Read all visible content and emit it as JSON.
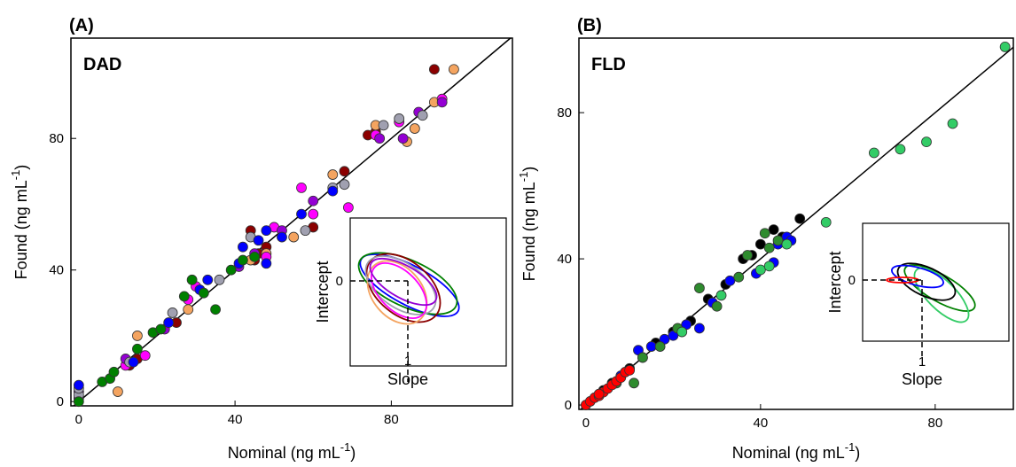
{
  "chart_data": [
    {
      "type": "scatter",
      "title": "(A)",
      "annotation": "DAD",
      "xlabel": {
        "text": "Nominal (ng mL",
        "sup": "-1",
        "end": ")"
      },
      "ylabel": {
        "text": "Found (ng mL",
        "sup": "-1",
        "end": ")"
      },
      "xlim": [
        -2,
        111
      ],
      "ylim": [
        -1.3,
        110.5
      ],
      "xticks": [
        0,
        40,
        80
      ],
      "yticks": [
        0,
        40,
        80
      ],
      "identity_line": true,
      "inset": {
        "xlabel": "Slope",
        "ylabel": "Intercept",
        "xticks": [
          1
        ],
        "yticks": [
          0
        ]
      },
      "series": [
        {
          "color": "#8b0000",
          "x": [
            13,
            15,
            25,
            45,
            46,
            48,
            60,
            68,
            74,
            76,
            91,
            44
          ],
          "values": [
            11,
            13,
            24,
            43,
            45,
            47,
            53,
            70,
            81,
            82,
            101,
            52
          ]
        },
        {
          "color": "#f4a460",
          "x": [
            10,
            15,
            28,
            44,
            48,
            55,
            65,
            76,
            84,
            86,
            91,
            96
          ],
          "values": [
            3,
            20,
            28,
            43,
            45,
            50,
            69,
            84,
            79,
            83,
            91,
            101
          ]
        },
        {
          "color": "#ff00ff",
          "x": [
            12,
            17,
            28,
            30,
            48,
            50,
            57,
            60,
            69,
            76,
            82,
            93
          ],
          "values": [
            11,
            14,
            31,
            35,
            44,
            53,
            65,
            57,
            59,
            81,
            85,
            92
          ]
        },
        {
          "color": "#9400d3",
          "x": [
            12,
            22,
            41,
            45,
            52,
            60,
            77,
            83,
            93,
            87,
            0,
            0
          ],
          "values": [
            13,
            22,
            41,
            45,
            52,
            61,
            80,
            80,
            91,
            88,
            3,
            1
          ]
        },
        {
          "color": "#a0a0b0",
          "x": [
            0,
            0,
            13,
            24,
            36,
            44,
            58,
            65,
            68,
            78,
            82,
            88
          ],
          "values": [
            2,
            4,
            12,
            27,
            37,
            50,
            52,
            65,
            66,
            84,
            86,
            87
          ]
        },
        {
          "color": "#0000ff",
          "x": [
            0,
            14,
            23,
            31,
            33,
            41,
            42,
            46,
            48,
            48,
            52,
            57,
            65
          ],
          "values": [
            5,
            12,
            24,
            34,
            37,
            42,
            47,
            49,
            52,
            42,
            50,
            57,
            64
          ]
        },
        {
          "color": "#008000",
          "x": [
            0,
            6,
            8,
            9,
            15,
            19,
            21,
            27,
            29,
            32,
            35,
            39,
            45,
            42
          ],
          "values": [
            0,
            6,
            7,
            9,
            16,
            21,
            22,
            32,
            37,
            33,
            28,
            40,
            44,
            43
          ]
        }
      ]
    },
    {
      "type": "scatter",
      "title": "(B)",
      "annotation": "FLD",
      "xlabel": {
        "text": "Nominal (ng mL",
        "sup": "-1",
        "end": ")"
      },
      "ylabel": {
        "text": "Found (ng mL",
        "sup": "-1",
        "end": ")"
      },
      "xlim": [
        -1.6,
        97.9
      ],
      "ylim": [
        -1.2,
        100.4
      ],
      "xticks": [
        0,
        40,
        80
      ],
      "yticks": [
        0,
        40,
        80
      ],
      "identity_line": true,
      "inset": {
        "xlabel": "Slope",
        "ylabel": "Intercept",
        "xticks": [
          1
        ],
        "yticks": [
          0
        ]
      },
      "series": [
        {
          "color": "#000000",
          "x": [
            4,
            6,
            10,
            13,
            16,
            20,
            24,
            28,
            32,
            36,
            38,
            40,
            43,
            45,
            49
          ],
          "values": [
            4,
            6,
            10,
            13,
            17,
            20,
            23,
            29,
            33,
            40,
            41,
            44,
            48,
            46,
            51
          ]
        },
        {
          "color": "#0000ff",
          "x": [
            8,
            12,
            15,
            18,
            20,
            23,
            26,
            29,
            33,
            39,
            43,
            44,
            46,
            47
          ],
          "values": [
            8,
            15,
            16,
            18,
            19,
            22,
            21,
            28,
            34,
            36,
            39,
            44,
            46,
            45
          ]
        },
        {
          "color": "#2e8b2e",
          "x": [
            7,
            11,
            13,
            17,
            21,
            26,
            30,
            35,
            37,
            41,
            44,
            42
          ],
          "values": [
            6,
            6,
            13,
            16,
            21,
            32,
            27,
            35,
            41,
            47,
            45,
            43
          ]
        },
        {
          "color": "#33cc66",
          "x": [
            22,
            31,
            40,
            42,
            46,
            55,
            66,
            72,
            78,
            84,
            96
          ],
          "values": [
            20,
            30,
            37,
            38,
            44,
            50,
            69,
            70,
            72,
            77,
            98
          ]
        },
        {
          "color": "#ff0000",
          "x": [
            0,
            1,
            2,
            3,
            4,
            5,
            6,
            7,
            8,
            9,
            10,
            3
          ],
          "values": [
            0,
            1,
            2,
            2.5,
            3.5,
            4.5,
            5.5,
            6.5,
            7.5,
            9,
            9.5,
            3
          ]
        }
      ]
    }
  ]
}
